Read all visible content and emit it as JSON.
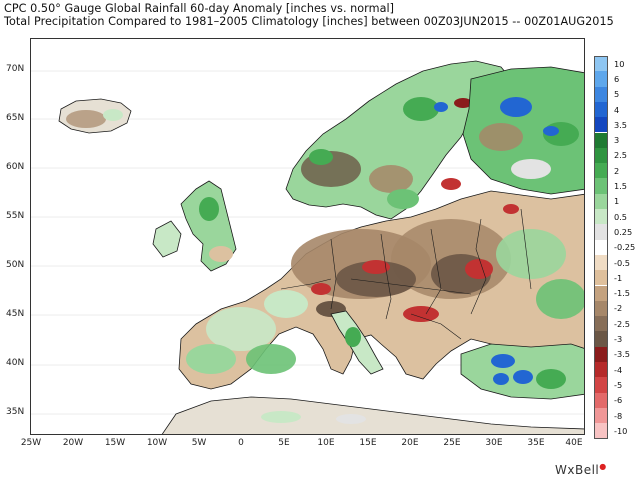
{
  "title": {
    "line1": "CPC 0.50° Gauge Global Rainfall 60-day Anomaly [inches vs. normal]",
    "line2": "Total Precipitation Compared to 1981–2005 Climatology [inches] between 00Z03JUN2015 -- 00Z01AUG2015"
  },
  "axes": {
    "lat_ticks": [
      "70N",
      "65N",
      "60N",
      "55N",
      "50N",
      "45N",
      "40N",
      "35N"
    ],
    "lon_ticks": [
      "25W",
      "20W",
      "15W",
      "10W",
      "5W",
      "0",
      "5E",
      "10E",
      "15E",
      "20E",
      "25E",
      "30E",
      "35E",
      "40E"
    ]
  },
  "legend": {
    "items": [
      {
        "label": "10",
        "color": "#8ec6f2"
      },
      {
        "label": "6",
        "color": "#5ea7ec"
      },
      {
        "label": "5",
        "color": "#3d86e0"
      },
      {
        "label": "4",
        "color": "#2266d2"
      },
      {
        "label": "3.5",
        "color": "#1447bf"
      },
      {
        "label": "3",
        "color": "#1f7a32"
      },
      {
        "label": "2.5",
        "color": "#2f9440"
      },
      {
        "label": "2",
        "color": "#45ab53"
      },
      {
        "label": "1.5",
        "color": "#6cc276"
      },
      {
        "label": "1",
        "color": "#9ad69c"
      },
      {
        "label": "0.5",
        "color": "#c8e8c6"
      },
      {
        "label": "0.25",
        "color": "#e3e3e3"
      },
      {
        "label": "-0.25",
        "color": "#ffffff"
      },
      {
        "label": "-0.5",
        "color": "#f0dcc4"
      },
      {
        "label": "-1",
        "color": "#dfc09c"
      },
      {
        "label": "-1.5",
        "color": "#c4a27f"
      },
      {
        "label": "-2",
        "color": "#a68769"
      },
      {
        "label": "-2.5",
        "color": "#876e58"
      },
      {
        "label": "-3",
        "color": "#6b5746"
      },
      {
        "label": "-3.5",
        "color": "#8b1c1c"
      },
      {
        "label": "-4",
        "color": "#b52a2a"
      },
      {
        "label": "-5",
        "color": "#d24545"
      },
      {
        "label": "-6",
        "color": "#e36a6a"
      },
      {
        "label": "-8",
        "color": "#f09797"
      },
      {
        "label": "-10",
        "color": "#f8c3c3"
      }
    ]
  },
  "brand": {
    "text": "WxBell"
  },
  "colors": {
    "ocean": "#ffffff",
    "land_neutral": "#e6e0d4",
    "dry_light": "#dcc1a0",
    "dry_mid": "#a68769",
    "dry_dark": "#6b5746",
    "wet_light": "#9ad69c",
    "wet_mid": "#45ab53",
    "wet_dark": "#1f7a32",
    "red_core": "#c23232",
    "blue_core": "#2266d2",
    "border": "#1a1a1a"
  }
}
